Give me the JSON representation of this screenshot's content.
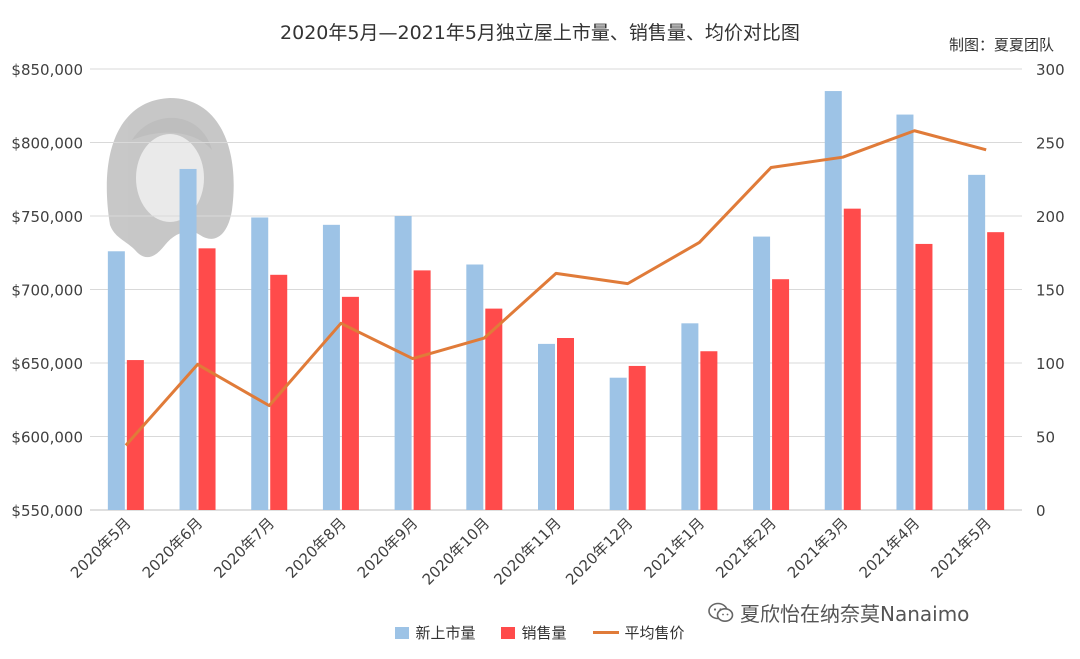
{
  "chart_data": {
    "type": "bar+line",
    "title": "2020年5月—2021年5月独立屋上市量、销售量、均价对比图",
    "credit": "制图：夏夏团队",
    "categories": [
      "2020年5月",
      "2020年6月",
      "2020年7月",
      "2020年8月",
      "2020年9月",
      "2020年10月",
      "2020年11月",
      "2020年12月",
      "2021年1月",
      "2021年2月",
      "2021年3月",
      "2021年4月",
      "2021年5月"
    ],
    "series": [
      {
        "name": "新上市量",
        "type": "bar",
        "axis": "right",
        "color": "#9dc3e6",
        "values": [
          176,
          232,
          199,
          194,
          200,
          167,
          113,
          90,
          127,
          186,
          285,
          269,
          228
        ]
      },
      {
        "name": "销售量",
        "type": "bar",
        "axis": "right",
        "color": "#ff4b4b",
        "values": [
          102,
          178,
          160,
          145,
          163,
          137,
          117,
          98,
          108,
          157,
          205,
          181,
          189
        ]
      },
      {
        "name": "平均售价",
        "type": "line",
        "axis": "left",
        "color": "#e07b39",
        "values": [
          594000,
          649000,
          621000,
          677000,
          653000,
          667000,
          711000,
          704000,
          732000,
          783000,
          790000,
          808000,
          795000
        ]
      }
    ],
    "yleft": {
      "min": 550000,
      "max": 850000,
      "step": 50000,
      "ticks": [
        "$550,000",
        "$600,000",
        "$650,000",
        "$700,000",
        "$750,000",
        "$800,000",
        "$850,000"
      ]
    },
    "yright": {
      "min": 0,
      "max": 300,
      "step": 50,
      "ticks": [
        "0",
        "50",
        "100",
        "150",
        "200",
        "250",
        "300"
      ]
    },
    "grid": true,
    "legend_position": "bottom"
  },
  "watermark": {
    "icon": "wechat-icon",
    "text": "夏欣怡在纳奈莫Nanaimo"
  }
}
